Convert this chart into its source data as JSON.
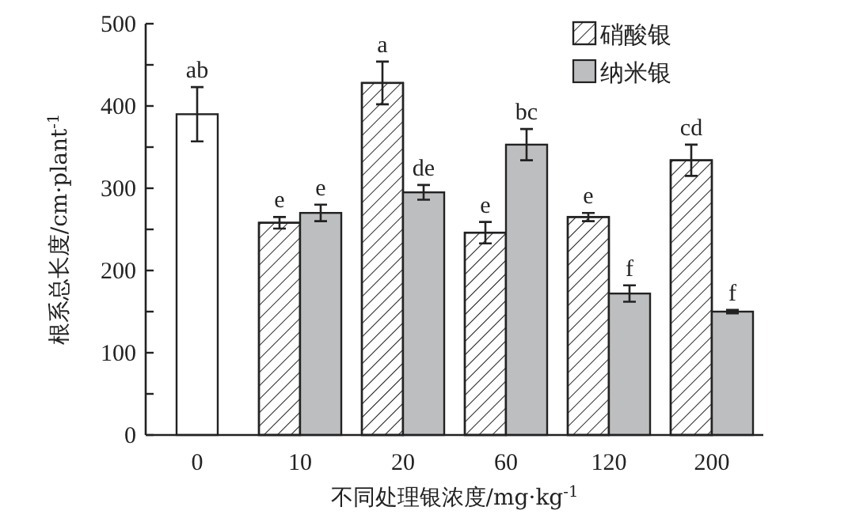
{
  "chart_data": {
    "type": "bar",
    "categories": [
      "0",
      "10",
      "20",
      "60",
      "120",
      "200"
    ],
    "series": [
      {
        "color": "#ffffff",
        "values": [
          390,
          null,
          null,
          null,
          null,
          null
        ],
        "errors": [
          33,
          null,
          null,
          null,
          null,
          null
        ],
        "value_labels": [
          "ab",
          null,
          null,
          null,
          null,
          null
        ]
      },
      {
        "name": "硝酸银",
        "color": "#ffffff",
        "values": [
          null,
          258,
          428,
          246,
          265,
          334
        ],
        "errors": [
          null,
          7,
          26,
          13,
          5,
          19
        ],
        "value_labels": [
          null,
          "e",
          "a",
          "e",
          "e",
          "cd"
        ]
      },
      {
        "name": "纳米银",
        "color": "#bdbec0",
        "values": [
          null,
          270,
          295,
          353,
          172,
          150
        ],
        "errors": [
          null,
          10,
          9,
          19,
          10,
          2
        ],
        "value_labels": [
          null,
          "e",
          "de",
          "bc",
          "f",
          "f"
        ]
      }
    ],
    "xlabel": "不同处理银浓度/mg·kg$^{-1}$",
    "ylabel": "根系总长度/cm·plant$^{-1}$",
    "ylim": [
      0,
      500
    ],
    "yticks": [
      0,
      {
        "value": 50,
        "label": null
      },
      100,
      {
        "value": 150,
        "label": null
      },
      200,
      {
        "value": 250,
        "label": null
      },
      300,
      {
        "value": 350,
        "label": null
      },
      400,
      {
        "value": 450,
        "label": null
      },
      500
    ],
    "legend": "top right",
    "grid": false
  }
}
